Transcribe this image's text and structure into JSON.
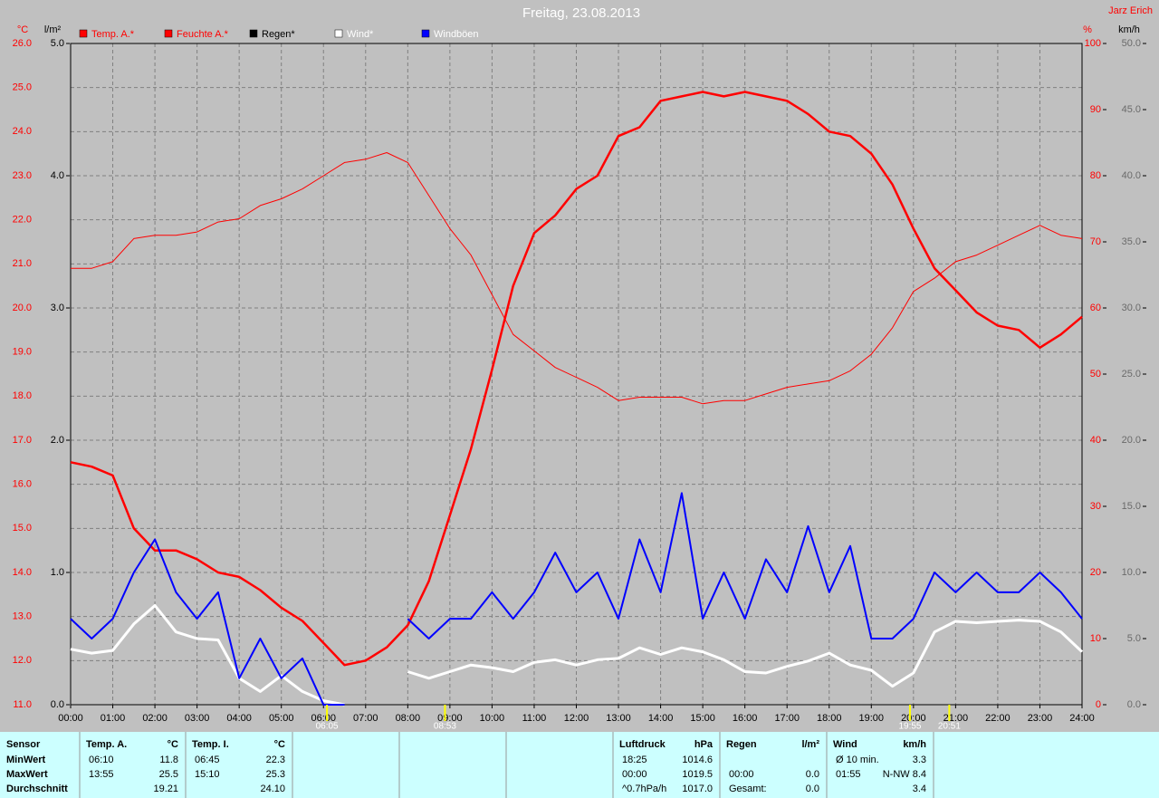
{
  "chart_data": {
    "type": "line",
    "title": "Freitag, 23.08.2013",
    "author": "Jarz Erich",
    "axis_labels": {
      "y": "°C",
      "y4": "l/m²",
      "y2": "%",
      "y3": "km/h"
    },
    "x": [
      0,
      0.5,
      1,
      1.5,
      2,
      2.5,
      3,
      3.5,
      4,
      4.5,
      5,
      5.5,
      6,
      6.5,
      7,
      7.5,
      8,
      8.5,
      9,
      9.5,
      10,
      10.5,
      11,
      11.5,
      12,
      12.5,
      13,
      13.5,
      14,
      14.5,
      15,
      15.5,
      16,
      16.5,
      17,
      17.5,
      18,
      18.5,
      19,
      19.5,
      20,
      20.5,
      21,
      21.5,
      22,
      22.5,
      23,
      23.5,
      24
    ],
    "xlim": [
      0,
      24
    ],
    "xticks": [
      {
        "value": 0,
        "label": "00:00"
      },
      {
        "value": 1,
        "label": "01:00"
      },
      {
        "value": 2,
        "label": "02:00"
      },
      {
        "value": 3,
        "label": "03:00"
      },
      {
        "value": 4,
        "label": "04:00"
      },
      {
        "value": 5,
        "label": "05:00"
      },
      {
        "value": 6,
        "label": "06:00"
      },
      {
        "value": 7,
        "label": "07:00"
      },
      {
        "value": 8,
        "label": "08:00"
      },
      {
        "value": 9,
        "label": "09:00"
      },
      {
        "value": 10,
        "label": "10:00"
      },
      {
        "value": 11,
        "label": "11:00"
      },
      {
        "value": 12,
        "label": "12:00"
      },
      {
        "value": 13,
        "label": "13:00"
      },
      {
        "value": 14,
        "label": "14:00"
      },
      {
        "value": 15,
        "label": "15:00"
      },
      {
        "value": 16,
        "label": "16:00"
      },
      {
        "value": 17,
        "label": "17:00"
      },
      {
        "value": 18,
        "label": "18:00"
      },
      {
        "value": 19,
        "label": "19:00"
      },
      {
        "value": 20,
        "label": "20:00"
      },
      {
        "value": 21,
        "label": "21:00"
      },
      {
        "value": 22,
        "label": "22:00"
      },
      {
        "value": 23,
        "label": "23:00"
      },
      {
        "value": 24,
        "label": "24:00"
      }
    ],
    "ylim": [
      11,
      26
    ],
    "yticks": [
      {
        "value": 11,
        "label": "11.0"
      },
      {
        "value": 12,
        "label": "12.0"
      },
      {
        "value": 13,
        "label": "13.0"
      },
      {
        "value": 14,
        "label": "14.0"
      },
      {
        "value": 15,
        "label": "15.0"
      },
      {
        "value": 16,
        "label": "16.0"
      },
      {
        "value": 17,
        "label": "17.0"
      },
      {
        "value": 18,
        "label": "18.0"
      },
      {
        "value": 19,
        "label": "19.0"
      },
      {
        "value": 20,
        "label": "20.0"
      },
      {
        "value": 21,
        "label": "21.0"
      },
      {
        "value": 22,
        "label": "22.0"
      },
      {
        "value": 23,
        "label": "23.0"
      },
      {
        "value": 24,
        "label": "24.0"
      },
      {
        "value": 25,
        "label": "25.0"
      },
      {
        "value": 26,
        "label": "26.0"
      }
    ],
    "y4lim": [
      0,
      5
    ],
    "y4ticks": [
      {
        "value": 0,
        "label": "0.0"
      },
      {
        "value": 1,
        "label": "1.0"
      },
      {
        "value": 2,
        "label": "2.0"
      },
      {
        "value": 3,
        "label": "3.0"
      },
      {
        "value": 4,
        "label": "4.0"
      },
      {
        "value": 5,
        "label": "5.0"
      }
    ],
    "y2lim": [
      0,
      100
    ],
    "y2ticks": [
      0,
      10,
      20,
      30,
      40,
      50,
      60,
      70,
      80,
      90,
      100
    ],
    "y3lim": [
      0,
      50
    ],
    "y3ticks": [
      {
        "value": 0,
        "label": "0.0"
      },
      {
        "value": 5,
        "label": "5.0"
      },
      {
        "value": 10,
        "label": "10.0"
      },
      {
        "value": 15,
        "label": "15.0"
      },
      {
        "value": 20,
        "label": "20.0"
      },
      {
        "value": 25,
        "label": "25.0"
      },
      {
        "value": 30,
        "label": "30.0"
      },
      {
        "value": 35,
        "label": "35.0"
      },
      {
        "value": 40,
        "label": "40.0"
      },
      {
        "value": 45,
        "label": "45.0"
      },
      {
        "value": 50,
        "label": "50.0"
      }
    ],
    "grid": true,
    "series": [
      {
        "name": "Temp. A.*",
        "color": "#ff0000",
        "axis": "y",
        "width": 2.5,
        "values": [
          16.5,
          16.4,
          16.2,
          15.0,
          14.5,
          14.5,
          14.3,
          14.0,
          13.9,
          13.6,
          13.2,
          12.9,
          12.4,
          11.9,
          12.0,
          12.3,
          12.8,
          13.8,
          15.3,
          16.8,
          18.6,
          20.5,
          21.7,
          22.1,
          22.7,
          23.0,
          23.9,
          24.1,
          24.7,
          24.8,
          24.9,
          24.8,
          24.9,
          24.8,
          24.7,
          24.4,
          24.0,
          23.9,
          23.5,
          22.8,
          21.8,
          20.9,
          20.4,
          19.9,
          19.6,
          19.5,
          19.1,
          19.4,
          19.8
        ]
      },
      {
        "name": "Feuchte A.*",
        "color": "#ff0000",
        "axis": "y2",
        "width": 1,
        "values": [
          66,
          66,
          67,
          70.5,
          71,
          71,
          71.5,
          73,
          73.5,
          75.5,
          76.5,
          78,
          80,
          82,
          82.5,
          83.5,
          82,
          77,
          72,
          68,
          62,
          56,
          53.5,
          51,
          49.5,
          48,
          46,
          46.5,
          46.5,
          46.5,
          45.5,
          46,
          46,
          47,
          48,
          48.5,
          49,
          50.5,
          53,
          57,
          62.5,
          64.5,
          67,
          68,
          69.5,
          71,
          72.5,
          71,
          70.5
        ]
      },
      {
        "name": "Regen*",
        "color": "#000000",
        "axis": "y4",
        "style": "bar",
        "values": [
          0,
          0,
          0,
          0,
          0,
          0,
          0,
          0,
          0,
          0,
          0,
          0,
          0,
          0,
          0,
          0,
          0,
          0,
          0,
          0,
          0,
          0,
          0,
          0,
          0,
          0,
          0,
          0,
          0,
          0,
          0,
          0,
          0,
          0,
          0,
          0,
          0,
          0,
          0,
          0,
          0,
          0,
          0,
          0,
          0,
          0,
          0,
          0,
          0
        ]
      },
      {
        "name": "Wind*",
        "color": "#ffffff",
        "axis": "y3",
        "width": 3,
        "values": [
          4.2,
          3.9,
          4.1,
          6.1,
          7.5,
          5.5,
          5.0,
          4.9,
          2.0,
          1.0,
          2.2,
          1.0,
          0.3,
          0,
          null,
          null,
          2.5,
          2.0,
          2.5,
          3.0,
          2.8,
          2.5,
          3.2,
          3.4,
          3.0,
          3.4,
          3.5,
          4.3,
          3.8,
          4.3,
          4.0,
          3.4,
          2.5,
          2.4,
          2.9,
          3.3,
          3.9,
          3.0,
          2.6,
          1.4,
          2.4,
          5.5,
          6.3,
          6.2,
          6.3,
          6.4,
          6.3,
          5.5,
          4.0
        ]
      },
      {
        "name": "Windböen",
        "color": "#0000ff",
        "axis": "y3",
        "width": 2,
        "values": [
          6.5,
          5.0,
          6.5,
          10.0,
          12.5,
          8.5,
          6.5,
          8.5,
          2.0,
          5.0,
          2.0,
          3.5,
          0,
          0,
          null,
          null,
          6.5,
          5.0,
          6.5,
          6.5,
          8.5,
          6.5,
          8.5,
          11.5,
          8.5,
          10.0,
          6.5,
          12.5,
          8.5,
          16.0,
          6.5,
          10.0,
          6.5,
          11.0,
          8.5,
          13.5,
          8.5,
          12.0,
          5.0,
          5.0,
          6.5,
          10.0,
          8.5,
          10.0,
          8.5,
          8.5,
          10.0,
          8.5,
          6.5
        ]
      }
    ],
    "annotations": [
      {
        "x": 6.083,
        "label": "06:05"
      },
      {
        "x": 8.883,
        "label": "08:53"
      },
      {
        "x": 19.917,
        "label": "19:55"
      },
      {
        "x": 20.85,
        "label": "20:51"
      }
    ]
  },
  "table": {
    "row_labels": [
      "Sensor",
      "MinWert",
      "MaxWert",
      "Durchschnitt"
    ],
    "sections": [
      {
        "title": "Temp. A.",
        "unit": "°C",
        "rows": [
          [
            "06:10",
            "11.8"
          ],
          [
            "13:55",
            "25.5"
          ],
          [
            "19.21"
          ]
        ]
      },
      {
        "title": "Temp. I.",
        "unit": "°C",
        "rows": [
          [
            "06:45",
            "22.3"
          ],
          [
            "15:10",
            "25.3"
          ],
          [
            "24.10"
          ]
        ]
      },
      {
        "title": "Luftdruck",
        "unit": "hPa",
        "rows": [
          [
            "18:25",
            "1014.6"
          ],
          [
            "00:00",
            "1019.5"
          ],
          [
            "^0.7hPa/h",
            "1017.0"
          ]
        ]
      },
      {
        "title": "Regen",
        "unit": "l/m²",
        "rows": [
          [
            "00:00",
            "0.0"
          ],
          [
            "Gesamt:",
            "0.0"
          ]
        ]
      },
      {
        "title": "Wind",
        "unit": "km/h",
        "rows": [
          [
            "Ø 10 min.",
            "3.3"
          ],
          [
            "01:55",
            "N-NW 8.4"
          ],
          [
            "3.4"
          ]
        ]
      }
    ]
  }
}
